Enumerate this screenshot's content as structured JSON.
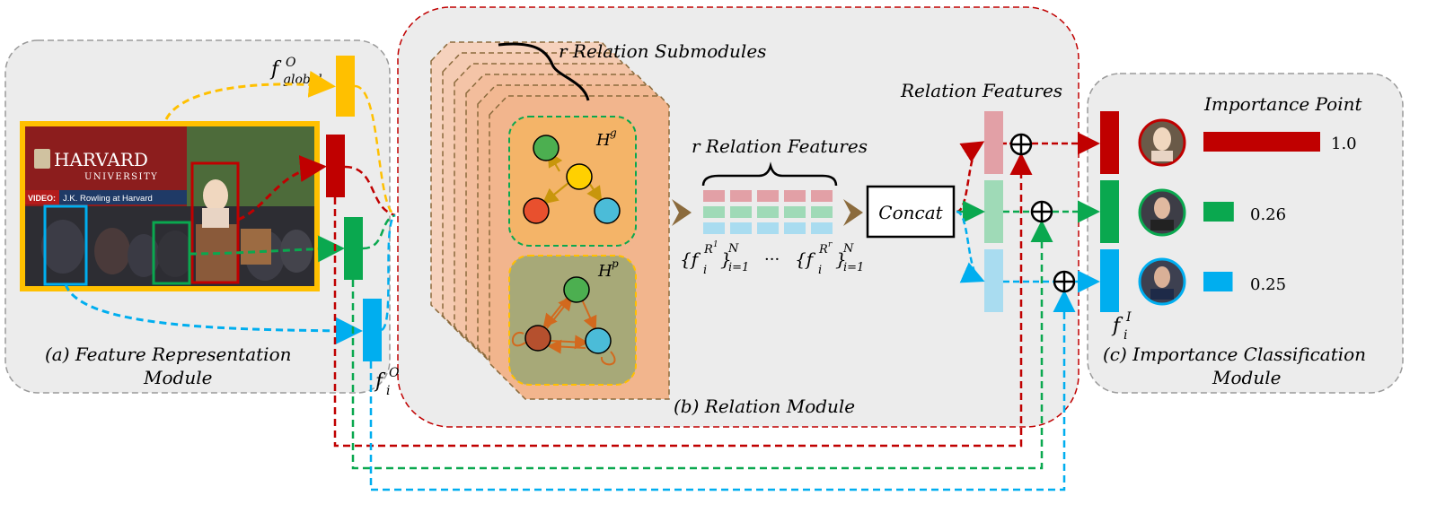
{
  "colors": {
    "red": "#c00000",
    "green": "#0aa84f",
    "blue": "#00aeef",
    "yellow": "#ffc000",
    "brown": "#8b6b3d",
    "panel_bg": "#ececec",
    "panel_border": "#9a9a9a",
    "relation_border": "#c00000"
  },
  "modules": {
    "feature": {
      "label_a": "(a)",
      "label_title_line1": "Feature Representation",
      "label_title_line2": "Module"
    },
    "relation": {
      "label_b": "(b)",
      "label_title": "Relation Module"
    },
    "importance": {
      "label_c": "(c)",
      "label_title_line1": "Importance Classification",
      "label_title_line2": "Module"
    }
  },
  "photo": {
    "logo_top": "HARVARD",
    "logo_bottom": "UNIVERSITY",
    "video_tag": "VIDEO:",
    "video_text": "J.K. Rowling at Harvard"
  },
  "features": {
    "global": {
      "base": "f",
      "sup": "O",
      "sub": "global"
    },
    "individual": {
      "base": "f",
      "sup": "O",
      "sub": "i"
    },
    "final": {
      "base": "f",
      "sup": "I",
      "sub": "i"
    }
  },
  "relation": {
    "submodules_label": "r Relation Submodules",
    "graph_g": {
      "base": "H",
      "sup": "g"
    },
    "graph_p": {
      "base": "H",
      "sup": "p"
    },
    "rel_features_label": "r Relation Features",
    "formula_left": {
      "open": "{f",
      "sub": "i",
      "sup": "R",
      "supsup": "1",
      "close": "}",
      "lim_sub": "i=1",
      "lim_sup": "N"
    },
    "ellipsis": "···",
    "formula_right": {
      "open": "{f",
      "sub": "i",
      "sup": "R",
      "supsup": "r",
      "close": "}",
      "lim_sub": "i=1",
      "lim_sup": "N"
    },
    "concat_label": "Concat",
    "output_label": "Relation Features"
  },
  "importance": {
    "title": "Importance Point",
    "items": [
      {
        "color": "#c00000",
        "value": "1.0",
        "fraction": 1.0
      },
      {
        "color": "#0aa84f",
        "value": "0.26",
        "fraction": 0.26
      },
      {
        "color": "#00aeef",
        "value": "0.25",
        "fraction": 0.25
      }
    ]
  }
}
